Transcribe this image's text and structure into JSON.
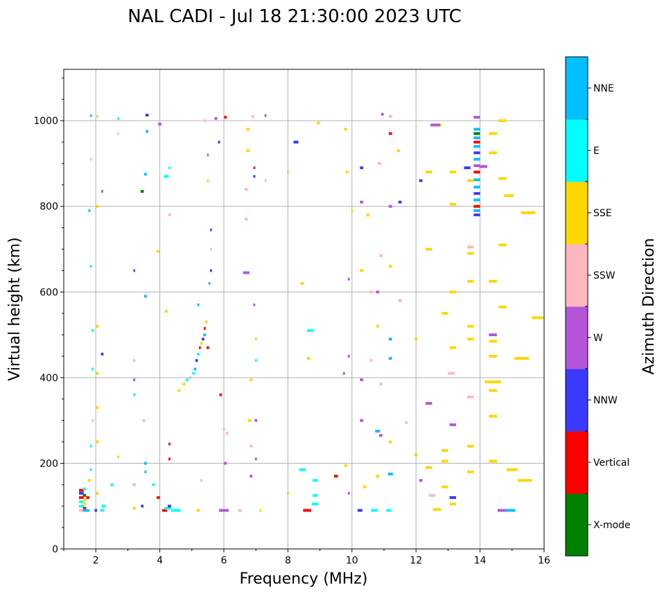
{
  "chart_data": {
    "type": "scatter",
    "title": "NAL CADI - Jul 18 21:30:00 2023 UTC",
    "xlabel": "Frequency (MHz)",
    "ylabel": "Virtual height (km)",
    "xlim": [
      1,
      16
    ],
    "ylim": [
      0,
      1120
    ],
    "xticks": [
      "2",
      "4",
      "6",
      "8",
      "10",
      "12",
      "14",
      "16"
    ],
    "yticks": [
      "0",
      "200",
      "400",
      "600",
      "800",
      "1000"
    ],
    "grid": true,
    "colorbar": {
      "label": "Azimuth Direction",
      "categories": [
        "X-mode",
        "Vertical",
        "NNW",
        "W",
        "SSW",
        "SSE",
        "E",
        "NNE"
      ],
      "colors": [
        "#008000",
        "#ff0000",
        "#3a3aff",
        "#b455d8",
        "#ffb6c1",
        "#ffd700",
        "#00ffff",
        "#00bfff"
      ]
    },
    "points_format": "[frequency_MHz, virtual_height_km, category_index, width_MHz]",
    "points": [
      [
        1.55,
        90,
        4,
        0.15
      ],
      [
        1.55,
        100,
        6,
        0.15
      ],
      [
        1.55,
        110,
        6,
        0.15
      ],
      [
        1.55,
        120,
        1,
        0.15
      ],
      [
        1.55,
        130,
        2,
        0.15
      ],
      [
        1.55,
        137,
        1,
        0.15
      ],
      [
        1.65,
        95,
        1,
        0.1
      ],
      [
        1.65,
        105,
        5,
        0.1
      ],
      [
        1.65,
        115,
        5,
        0.1
      ],
      [
        1.65,
        125,
        0,
        0.1
      ],
      [
        1.65,
        140,
        6,
        0.1
      ],
      [
        1.7,
        90,
        7,
        0.2
      ],
      [
        1.75,
        120,
        1,
        0.1
      ],
      [
        1.8,
        160,
        5,
        0.08
      ],
      [
        1.85,
        185,
        6,
        0.06
      ],
      [
        1.85,
        240,
        6,
        0.06
      ],
      [
        1.9,
        300,
        4,
        0.06
      ],
      [
        1.9,
        420,
        6,
        0.06
      ],
      [
        1.9,
        510,
        6,
        0.06
      ],
      [
        1.85,
        660,
        6,
        0.06
      ],
      [
        1.8,
        790,
        7,
        0.06
      ],
      [
        1.85,
        910,
        4,
        0.06
      ],
      [
        1.85,
        1012,
        7,
        0.05
      ],
      [
        2.0,
        90,
        2,
        0.08
      ],
      [
        2.05,
        130,
        5,
        0.08
      ],
      [
        2.05,
        250,
        5,
        0.08
      ],
      [
        2.05,
        330,
        5,
        0.08
      ],
      [
        2.05,
        410,
        5,
        0.08
      ],
      [
        2.05,
        520,
        5,
        0.08
      ],
      [
        2.05,
        800,
        5,
        0.08
      ],
      [
        2.05,
        1010,
        5,
        0.05
      ],
      [
        2.2,
        90,
        6,
        0.12
      ],
      [
        2.25,
        100,
        6,
        0.12
      ],
      [
        2.2,
        455,
        2,
        0.08
      ],
      [
        2.2,
        835,
        3,
        0.06
      ],
      [
        2.5,
        150,
        6,
        0.08
      ],
      [
        2.7,
        215,
        5,
        0.06
      ],
      [
        2.7,
        970,
        4,
        0.05
      ],
      [
        2.7,
        1005,
        6,
        0.05
      ],
      [
        3.2,
        95,
        5,
        0.08
      ],
      [
        3.2,
        150,
        4,
        0.1
      ],
      [
        3.2,
        360,
        6,
        0.06
      ],
      [
        3.2,
        395,
        3,
        0.06
      ],
      [
        3.2,
        440,
        4,
        0.06
      ],
      [
        3.2,
        650,
        2,
        0.05
      ],
      [
        3.45,
        100,
        2,
        0.08
      ],
      [
        3.45,
        835,
        0,
        0.1
      ],
      [
        3.5,
        300,
        4,
        0.08
      ],
      [
        3.55,
        200,
        7,
        0.08
      ],
      [
        3.55,
        180,
        7,
        0.06
      ],
      [
        3.55,
        590,
        7,
        0.08
      ],
      [
        3.55,
        875,
        7,
        0.08
      ],
      [
        3.6,
        975,
        7,
        0.08
      ],
      [
        3.6,
        1013,
        2,
        0.1
      ],
      [
        3.8,
        150,
        6,
        0.08
      ],
      [
        3.95,
        120,
        1,
        0.1
      ],
      [
        3.95,
        695,
        5,
        0.1
      ],
      [
        4.0,
        992,
        3,
        0.1
      ],
      [
        4.15,
        90,
        1,
        0.15
      ],
      [
        4.25,
        95,
        6,
        0.2
      ],
      [
        4.3,
        100,
        2,
        0.1
      ],
      [
        4.3,
        210,
        1,
        0.06
      ],
      [
        4.3,
        245,
        1,
        0.06
      ],
      [
        4.3,
        780,
        4,
        0.08
      ],
      [
        4.3,
        890,
        6,
        0.06
      ],
      [
        4.2,
        870,
        6,
        0.15
      ],
      [
        4.2,
        555,
        5,
        0.1
      ],
      [
        4.5,
        90,
        6,
        0.3
      ],
      [
        4.6,
        370,
        5,
        0.08
      ],
      [
        4.75,
        385,
        5,
        0.08
      ],
      [
        4.85,
        395,
        6,
        0.08
      ],
      [
        4.95,
        400,
        4,
        0.08
      ],
      [
        5.05,
        410,
        6,
        0.08
      ],
      [
        5.1,
        420,
        7,
        0.08
      ],
      [
        5.15,
        440,
        2,
        0.08
      ],
      [
        5.2,
        455,
        6,
        0.08
      ],
      [
        5.25,
        470,
        1,
        0.06
      ],
      [
        5.3,
        480,
        5,
        0.08
      ],
      [
        5.35,
        490,
        2,
        0.08
      ],
      [
        5.4,
        500,
        7,
        0.08
      ],
      [
        5.4,
        515,
        1,
        0.06
      ],
      [
        5.45,
        530,
        5,
        0.08
      ],
      [
        5.5,
        470,
        1,
        0.08
      ],
      [
        5.55,
        620,
        7,
        0.06
      ],
      [
        5.6,
        650,
        2,
        0.06
      ],
      [
        5.6,
        700,
        4,
        0.06
      ],
      [
        5.6,
        745,
        2,
        0.05
      ],
      [
        5.5,
        920,
        3,
        0.05
      ],
      [
        5.5,
        860,
        5,
        0.06
      ],
      [
        5.4,
        1000,
        4,
        0.05
      ],
      [
        5.2,
        90,
        5,
        0.1
      ],
      [
        5.3,
        160,
        4,
        0.06
      ],
      [
        5.2,
        570,
        7,
        0.06
      ],
      [
        5.9,
        360,
        1,
        0.08
      ],
      [
        6.0,
        280,
        4,
        0.06
      ],
      [
        6.05,
        200,
        3,
        0.08
      ],
      [
        6.1,
        270,
        4,
        0.08
      ],
      [
        6.0,
        90,
        3,
        0.3
      ],
      [
        6.05,
        1008,
        1,
        0.08
      ],
      [
        5.75,
        1005,
        3,
        0.08
      ],
      [
        5.85,
        950,
        2,
        0.06
      ],
      [
        6.5,
        90,
        4,
        0.1
      ],
      [
        6.7,
        645,
        3,
        0.2
      ],
      [
        6.7,
        770,
        4,
        0.1
      ],
      [
        6.7,
        840,
        4,
        0.1
      ],
      [
        6.75,
        980,
        5,
        0.1
      ],
      [
        6.75,
        930,
        5,
        0.1
      ],
      [
        6.8,
        300,
        5,
        0.1
      ],
      [
        6.85,
        170,
        3,
        0.08
      ],
      [
        6.85,
        240,
        4,
        0.08
      ],
      [
        6.85,
        395,
        5,
        0.08
      ],
      [
        6.9,
        1010,
        4,
        0.08
      ],
      [
        6.95,
        870,
        2,
        0.06
      ],
      [
        6.95,
        890,
        3,
        0.08
      ],
      [
        6.95,
        570,
        3,
        0.06
      ],
      [
        7.0,
        210,
        3,
        0.06
      ],
      [
        7.0,
        300,
        3,
        0.08
      ],
      [
        7.0,
        440,
        6,
        0.06
      ],
      [
        7.0,
        490,
        5,
        0.06
      ],
      [
        7.15,
        90,
        5,
        0.06
      ],
      [
        7.3,
        1012,
        3,
        0.06
      ],
      [
        7.3,
        860,
        4,
        0.06
      ],
      [
        8.0,
        130,
        5,
        0.06
      ],
      [
        8.0,
        880,
        5,
        0.06
      ],
      [
        8.25,
        950,
        2,
        0.15
      ],
      [
        8.45,
        185,
        6,
        0.2
      ],
      [
        8.45,
        620,
        5,
        0.1
      ],
      [
        8.6,
        90,
        1,
        0.25
      ],
      [
        8.65,
        445,
        5,
        0.1
      ],
      [
        8.7,
        510,
        6,
        0.2
      ],
      [
        8.85,
        125,
        6,
        0.15
      ],
      [
        8.85,
        105,
        6,
        0.2
      ],
      [
        8.85,
        160,
        6,
        0.15
      ],
      [
        8.95,
        995,
        5,
        0.1
      ],
      [
        9.5,
        170,
        1,
        0.12
      ],
      [
        9.75,
        410,
        3,
        0.06
      ],
      [
        9.8,
        195,
        5,
        0.08
      ],
      [
        9.8,
        980,
        5,
        0.08
      ],
      [
        9.85,
        880,
        5,
        0.08
      ],
      [
        9.9,
        450,
        3,
        0.06
      ],
      [
        9.9,
        130,
        3,
        0.06
      ],
      [
        9.9,
        630,
        3,
        0.06
      ],
      [
        10.0,
        790,
        5,
        0.06
      ],
      [
        10.25,
        90,
        2,
        0.15
      ],
      [
        10.3,
        395,
        3,
        0.1
      ],
      [
        10.3,
        300,
        3,
        0.1
      ],
      [
        10.3,
        890,
        2,
        0.1
      ],
      [
        10.3,
        810,
        3,
        0.1
      ],
      [
        10.3,
        650,
        5,
        0.1
      ],
      [
        10.4,
        145,
        5,
        0.1
      ],
      [
        10.5,
        780,
        5,
        0.1
      ],
      [
        10.6,
        600,
        4,
        0.1
      ],
      [
        10.6,
        440,
        4,
        0.08
      ],
      [
        10.7,
        90,
        6,
        0.2
      ],
      [
        10.8,
        170,
        5,
        0.1
      ],
      [
        10.8,
        600,
        3,
        0.1
      ],
      [
        10.8,
        520,
        5,
        0.08
      ],
      [
        10.8,
        275,
        7,
        0.15
      ],
      [
        10.9,
        385,
        4,
        0.1
      ],
      [
        10.9,
        265,
        3,
        0.1
      ],
      [
        10.9,
        685,
        4,
        0.1
      ],
      [
        10.85,
        900,
        4,
        0.1
      ],
      [
        10.95,
        1015,
        3,
        0.08
      ],
      [
        11.15,
        90,
        6,
        0.15
      ],
      [
        11.2,
        175,
        7,
        0.15
      ],
      [
        11.2,
        250,
        5,
        0.1
      ],
      [
        11.2,
        445,
        7,
        0.1
      ],
      [
        11.2,
        490,
        7,
        0.1
      ],
      [
        11.2,
        660,
        5,
        0.1
      ],
      [
        11.2,
        800,
        3,
        0.1
      ],
      [
        11.2,
        970,
        1,
        0.1
      ],
      [
        11.2,
        1010,
        4,
        0.1
      ],
      [
        11.45,
        930,
        5,
        0.1
      ],
      [
        11.5,
        810,
        2,
        0.1
      ],
      [
        11.5,
        580,
        4,
        0.1
      ],
      [
        11.7,
        295,
        4,
        0.08
      ],
      [
        12.0,
        220,
        5,
        0.1
      ],
      [
        12.0,
        490,
        5,
        0.08
      ],
      [
        12.15,
        160,
        3,
        0.1
      ],
      [
        12.15,
        860,
        2,
        0.1
      ],
      [
        12.4,
        880,
        5,
        0.2
      ],
      [
        12.4,
        700,
        5,
        0.2
      ],
      [
        12.4,
        340,
        3,
        0.2
      ],
      [
        12.4,
        190,
        5,
        0.2
      ],
      [
        12.5,
        125,
        4,
        0.2
      ],
      [
        12.7,
        990,
        5,
        0.2
      ],
      [
        12.6,
        990,
        3,
        0.3
      ],
      [
        12.65,
        92,
        5,
        0.25
      ],
      [
        12.9,
        550,
        5,
        0.2
      ],
      [
        12.9,
        230,
        5,
        0.2
      ],
      [
        12.9,
        205,
        5,
        0.2
      ],
      [
        12.9,
        145,
        5,
        0.2
      ],
      [
        13.15,
        880,
        5,
        0.2
      ],
      [
        13.15,
        805,
        5,
        0.2
      ],
      [
        13.15,
        600,
        5,
        0.2
      ],
      [
        13.15,
        470,
        5,
        0.2
      ],
      [
        13.15,
        290,
        3,
        0.2
      ],
      [
        13.15,
        120,
        2,
        0.2
      ],
      [
        13.15,
        105,
        5,
        0.2
      ],
      [
        13.1,
        410,
        4,
        0.2
      ],
      [
        13.7,
        860,
        5,
        0.2
      ],
      [
        13.7,
        705,
        4,
        0.2
      ],
      [
        13.7,
        690,
        5,
        0.2
      ],
      [
        13.7,
        625,
        5,
        0.2
      ],
      [
        13.7,
        520,
        5,
        0.2
      ],
      [
        13.7,
        490,
        5,
        0.2
      ],
      [
        13.7,
        355,
        4,
        0.2
      ],
      [
        13.7,
        240,
        5,
        0.2
      ],
      [
        13.7,
        180,
        5,
        0.2
      ],
      [
        13.6,
        890,
        2,
        0.2
      ],
      [
        13.9,
        1008,
        3,
        0.2
      ],
      [
        13.9,
        980,
        7,
        0.2
      ],
      [
        13.9,
        970,
        0,
        0.2
      ],
      [
        13.9,
        960,
        7,
        0.2
      ],
      [
        13.9,
        950,
        1,
        0.2
      ],
      [
        13.9,
        940,
        7,
        0.2
      ],
      [
        13.9,
        925,
        2,
        0.2
      ],
      [
        13.9,
        910,
        7,
        0.2
      ],
      [
        13.9,
        895,
        3,
        0.2
      ],
      [
        13.9,
        880,
        1,
        0.2
      ],
      [
        13.9,
        862,
        7,
        0.2
      ],
      [
        13.9,
        845,
        7,
        0.2
      ],
      [
        13.9,
        830,
        2,
        0.2
      ],
      [
        13.9,
        815,
        7,
        0.2
      ],
      [
        13.9,
        800,
        1,
        0.2
      ],
      [
        13.9,
        790,
        7,
        0.2
      ],
      [
        13.9,
        780,
        2,
        0.2
      ],
      [
        14.1,
        893,
        3,
        0.25
      ],
      [
        14.4,
        970,
        5,
        0.25
      ],
      [
        14.4,
        925,
        5,
        0.25
      ],
      [
        14.4,
        625,
        5,
        0.25
      ],
      [
        14.4,
        500,
        3,
        0.25
      ],
      [
        14.4,
        485,
        5,
        0.25
      ],
      [
        14.4,
        450,
        5,
        0.25
      ],
      [
        14.4,
        390,
        5,
        0.5
      ],
      [
        14.4,
        370,
        5,
        0.25
      ],
      [
        14.4,
        310,
        5,
        0.25
      ],
      [
        14.4,
        205,
        5,
        0.25
      ],
      [
        14.7,
        90,
        3,
        0.3
      ],
      [
        14.95,
        90,
        7,
        0.3
      ],
      [
        14.7,
        1000,
        5,
        0.25
      ],
      [
        14.7,
        865,
        5,
        0.25
      ],
      [
        14.7,
        710,
        5,
        0.25
      ],
      [
        14.7,
        565,
        5,
        0.25
      ],
      [
        14.9,
        825,
        5,
        0.3
      ],
      [
        15.0,
        185,
        5,
        0.35
      ],
      [
        15.3,
        445,
        5,
        0.45
      ],
      [
        15.4,
        160,
        5,
        0.45
      ],
      [
        15.5,
        785,
        5,
        0.45
      ],
      [
        15.8,
        540,
        5,
        0.35
      ]
    ]
  }
}
